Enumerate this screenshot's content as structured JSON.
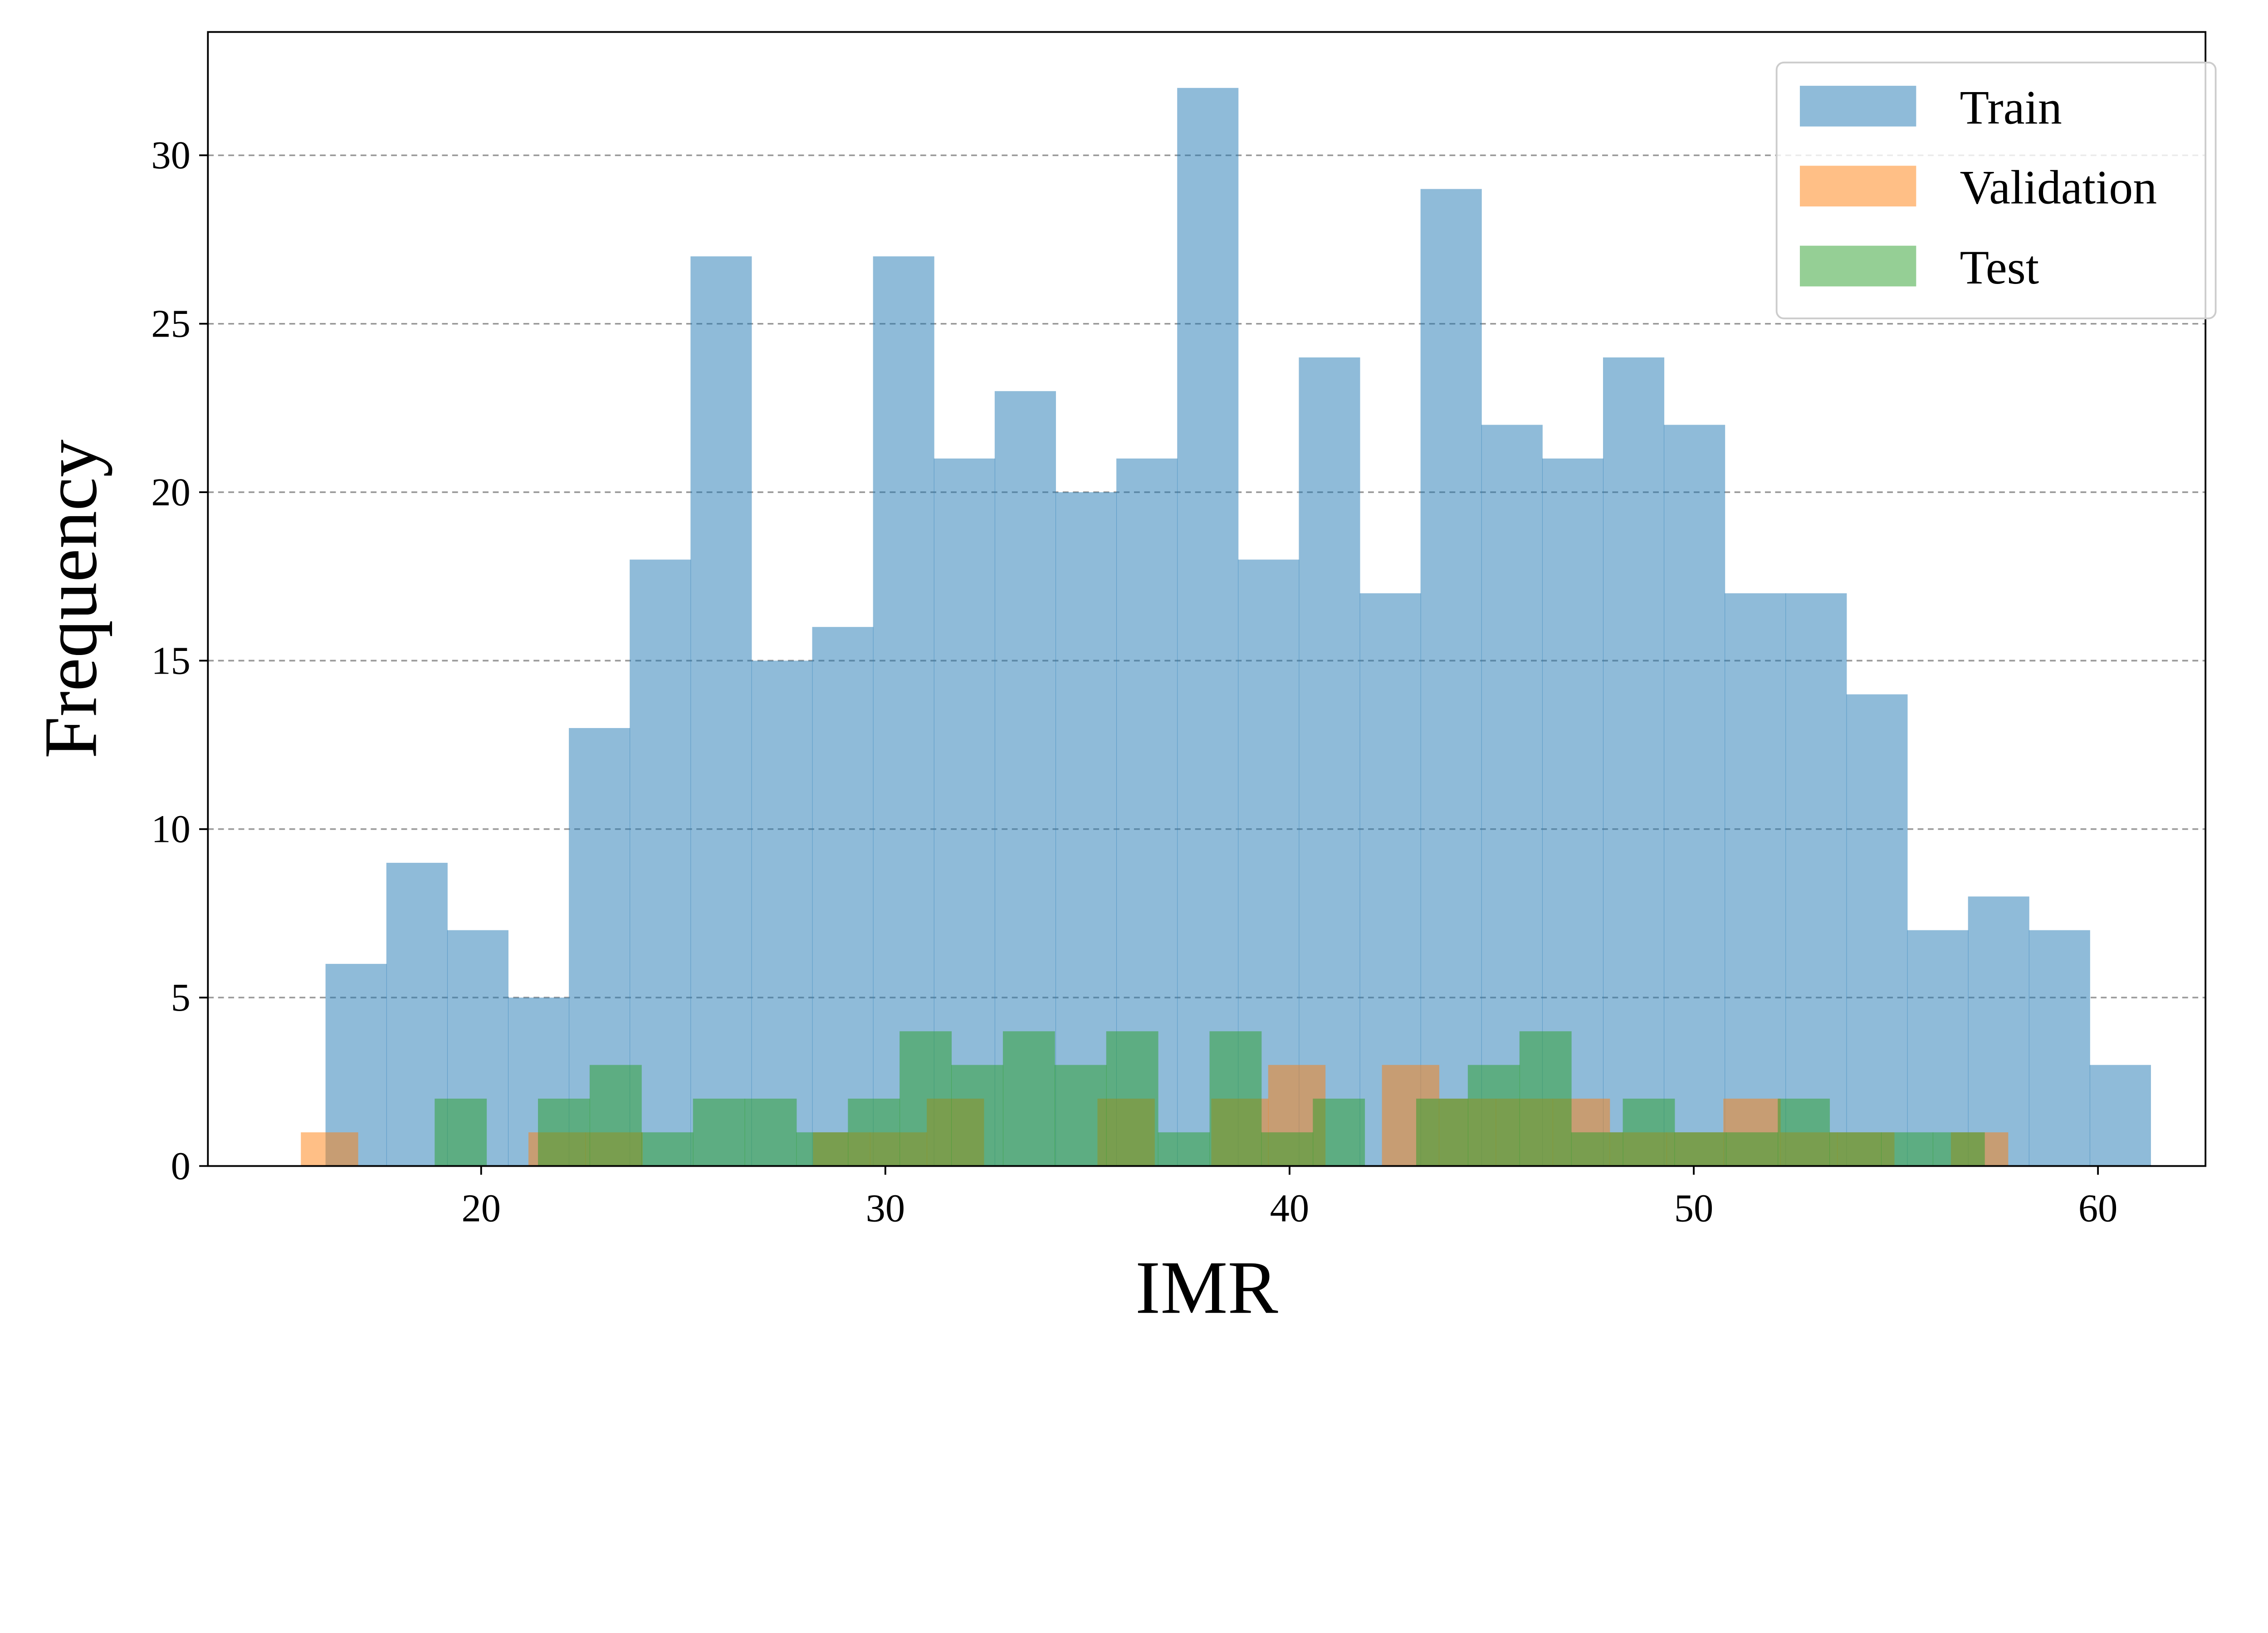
{
  "chart_data": {
    "type": "bar",
    "subtype": "histogram",
    "title": "",
    "xlabel": "IMR",
    "ylabel": "Frequency",
    "xlim": [
      13.24,
      62.66
    ],
    "ylim": [
      0,
      33.66
    ],
    "xticks": [
      20,
      30,
      40,
      50,
      60
    ],
    "yticks": [
      0,
      5,
      10,
      15,
      20,
      25,
      30
    ],
    "grid": "y, dashed",
    "legend_position": "top-right",
    "series": [
      {
        "name": "Train",
        "color": "#1f77b4",
        "alpha": 0.5,
        "range": [
          16.15,
          61.3
        ],
        "values": [
          6,
          9,
          7,
          5,
          13,
          18,
          27,
          15,
          16,
          27,
          21,
          23,
          20,
          21,
          32,
          18,
          24,
          17,
          29,
          22,
          21,
          24,
          22,
          17,
          17,
          14,
          7,
          8,
          7,
          3
        ]
      },
      {
        "name": "Validation",
        "color": "#ff7f0e",
        "alpha": 0.5,
        "range": [
          15.54,
          57.77
        ],
        "values": [
          1,
          0,
          0,
          0,
          1,
          1,
          0,
          0,
          0,
          1,
          1,
          2,
          0,
          0,
          2,
          0,
          2,
          3,
          0,
          3,
          2,
          2,
          2,
          1,
          1,
          2,
          1,
          1,
          0,
          1
        ]
      },
      {
        "name": "Test",
        "color": "#2ca02c",
        "alpha": 0.5,
        "range": [
          18.85,
          57.19
        ],
        "values": [
          2,
          0,
          2,
          3,
          1,
          2,
          2,
          1,
          2,
          4,
          3,
          4,
          3,
          4,
          1,
          4,
          1,
          2,
          0,
          2,
          3,
          4,
          1,
          2,
          1,
          1,
          2,
          1,
          1,
          1
        ]
      }
    ]
  }
}
